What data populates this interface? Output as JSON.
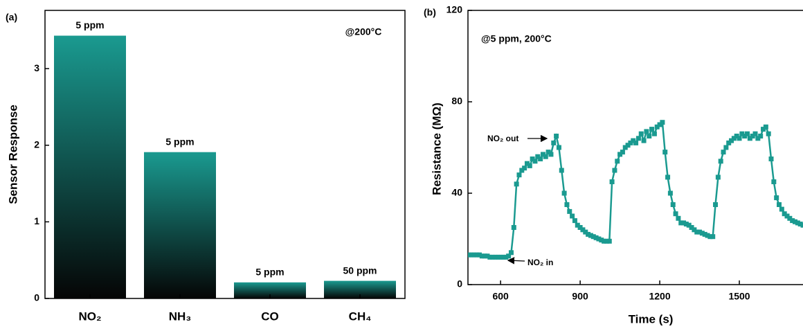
{
  "chart_data": [
    {
      "type": "bar",
      "panel": "(a)",
      "ylabel": "Sensor Response",
      "annotation": "@200°C",
      "categories": [
        "NO₂",
        "NH₃",
        "CO",
        "CH₄"
      ],
      "values": [
        3.43,
        1.91,
        0.21,
        0.23
      ],
      "bar_labels": [
        "5 ppm",
        "5 ppm",
        "5 ppm",
        "50 ppm"
      ],
      "color": "#1a9a90",
      "ylim": [
        0,
        3.76
      ],
      "yticks": [
        0,
        1,
        2,
        3
      ]
    },
    {
      "type": "line",
      "panel": "(b)",
      "xlabel": "Time (s)",
      "ylabel": "Resistance (MΩ)",
      "annotations": [
        "@5 ppm, 200°C",
        "NO₂ out",
        "NO₂ in"
      ],
      "color": "#1a9a90",
      "x": [
        480,
        490,
        500,
        510,
        520,
        530,
        540,
        550,
        560,
        570,
        580,
        590,
        600,
        610,
        620,
        630,
        640,
        650,
        660,
        670,
        680,
        690,
        700,
        710,
        720,
        730,
        740,
        750,
        760,
        770,
        780,
        790,
        800,
        810,
        820,
        830,
        840,
        850,
        860,
        870,
        880,
        890,
        900,
        910,
        920,
        930,
        940,
        950,
        960,
        970,
        980,
        990,
        1000,
        1010,
        1020,
        1030,
        1040,
        1050,
        1060,
        1070,
        1080,
        1090,
        1100,
        1110,
        1120,
        1130,
        1140,
        1150,
        1160,
        1170,
        1180,
        1190,
        1200,
        1210,
        1220,
        1230,
        1240,
        1250,
        1260,
        1270,
        1280,
        1290,
        1300,
        1310,
        1320,
        1330,
        1340,
        1350,
        1360,
        1370,
        1380,
        1390,
        1400,
        1410,
        1420,
        1430,
        1440,
        1450,
        1460,
        1470,
        1480,
        1490,
        1500,
        1510,
        1520,
        1530,
        1540,
        1550,
        1560,
        1570,
        1580,
        1590,
        1600,
        1610,
        1620,
        1630,
        1640,
        1650,
        1660,
        1670,
        1680,
        1690,
        1700,
        1710,
        1720,
        1730,
        1740
      ],
      "values": [
        13,
        13,
        13,
        13,
        13,
        12.5,
        12.5,
        12.5,
        12,
        12,
        12,
        12,
        12,
        12,
        12,
        12.5,
        14,
        25,
        44,
        48,
        50,
        51,
        53,
        52,
        55,
        54,
        56,
        55,
        57,
        56,
        58,
        57,
        62,
        65,
        60,
        50,
        40,
        35,
        32,
        30,
        28,
        26,
        25,
        24,
        23,
        22,
        21.5,
        21,
        20.5,
        20,
        19.5,
        19,
        19,
        19,
        45,
        50,
        54,
        57,
        58,
        60,
        61,
        62,
        63,
        62,
        64,
        66,
        63,
        67,
        65,
        68,
        66,
        69,
        70,
        71,
        58,
        47,
        40,
        35,
        31,
        29,
        27,
        27,
        26.5,
        26,
        25,
        24,
        23,
        23,
        22.5,
        22,
        21.5,
        21,
        21,
        35,
        47,
        54,
        58,
        60,
        62,
        63,
        64,
        65,
        64,
        66,
        65,
        66,
        64,
        65,
        66,
        64,
        65,
        68,
        69,
        66,
        55,
        45,
        38,
        35,
        33,
        31,
        30,
        29,
        28,
        27.5,
        27,
        26.5,
        26
      ],
      "xlim": [
        477,
        1740
      ],
      "ylim": [
        0,
        120
      ],
      "xticks": [
        600,
        900,
        1200,
        1500
      ],
      "yticks": [
        0,
        40,
        80,
        120
      ]
    }
  ]
}
